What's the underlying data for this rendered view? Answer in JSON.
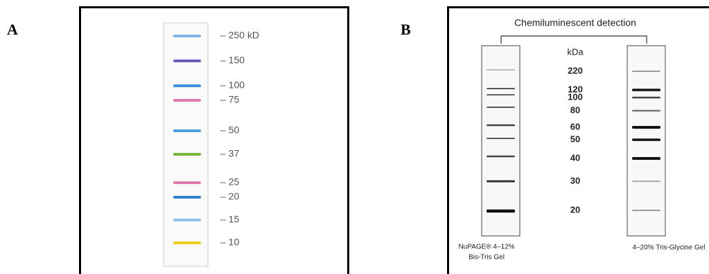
{
  "panel_a": {
    "label": "A",
    "markers": [
      "– 250 kD",
      "– 150",
      "– 100",
      "– 75",
      "– 50",
      "– 37",
      "– 25",
      "– 20",
      "– 15",
      "– 10"
    ]
  },
  "panel_b": {
    "label": "B",
    "title": "Chemiluminescent detection",
    "unit": "kDa",
    "markers": [
      "220",
      "120",
      "100",
      "80",
      "60",
      "50",
      "40",
      "30",
      "20"
    ],
    "left_caption": [
      "NuPAGE® 4–12%",
      "Bis-Tris Gel"
    ],
    "right_caption": "4–20% Tris-Glycine Gel"
  }
}
